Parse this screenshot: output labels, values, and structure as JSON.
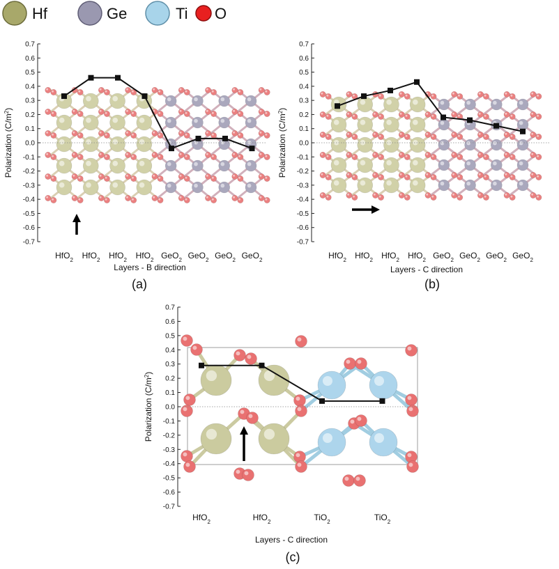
{
  "legend": {
    "items": [
      {
        "label": "Hf",
        "color": "#a8a86a",
        "stroke": "#6b6b3a"
      },
      {
        "label": "Ge",
        "color": "#9a98b0",
        "stroke": "#5f5d75"
      },
      {
        "label": "Ti",
        "color": "#a8d4ea",
        "stroke": "#5f8fa8"
      },
      {
        "label": "O",
        "color": "#e82020",
        "stroke": "#8a0e0e"
      }
    ]
  },
  "colors": {
    "hf": "#c9c99a",
    "ge": "#9c9ab2",
    "ti": "#a9d3ec",
    "o": "#e86a6a",
    "line": "#111111"
  },
  "chart_data": [
    {
      "id": "a",
      "type": "line",
      "panel_label": "(a)",
      "ylabel": "Polarization (C/m",
      "ylabel_sup": "2",
      "ylabel_close": ")",
      "xlabel": "Layers - B direction",
      "ylim": [
        -0.7,
        0.7
      ],
      "yticks": [
        "0.7",
        "0.6",
        "0.5",
        "0.4",
        "0.3",
        "0.2",
        "0.1",
        "0.0",
        "-0.1",
        "-0.2",
        "-0.3",
        "-0.4",
        "-0.5",
        "-0.6",
        "-0.7"
      ],
      "categories": [
        {
          "base": "HfO",
          "sub": "2"
        },
        {
          "base": "HfO",
          "sub": "2"
        },
        {
          "base": "HfO",
          "sub": "2"
        },
        {
          "base": "HfO",
          "sub": "2"
        },
        {
          "base": "GeO",
          "sub": "2"
        },
        {
          "base": "GeO",
          "sub": "2"
        },
        {
          "base": "GeO",
          "sub": "2"
        },
        {
          "base": "GeO",
          "sub": "2"
        }
      ],
      "values": [
        0.33,
        0.46,
        0.46,
        0.33,
        -0.04,
        0.03,
        0.03,
        -0.04
      ],
      "arrow": "up"
    },
    {
      "id": "b",
      "type": "line",
      "panel_label": "(b)",
      "ylabel": "Polarization (C/m",
      "ylabel_sup": "2",
      "ylabel_close": ")",
      "xlabel": "Layers - C direction",
      "ylim": [
        -0.7,
        0.7
      ],
      "yticks": [
        "0.7",
        "0.6",
        "0.5",
        "0.4",
        "0.3",
        "0.2",
        "0.1",
        "0.0",
        "-0.1",
        "-0.2",
        "-0.3",
        "-0.4",
        "-0.5",
        "-0.6",
        "-0.7"
      ],
      "categories": [
        {
          "base": "HfO",
          "sub": "2"
        },
        {
          "base": "HfO",
          "sub": "2"
        },
        {
          "base": "HfO",
          "sub": "2"
        },
        {
          "base": "HfO",
          "sub": "2"
        },
        {
          "base": "GeO",
          "sub": "2"
        },
        {
          "base": "GeO",
          "sub": "2"
        },
        {
          "base": "GeO",
          "sub": "2"
        },
        {
          "base": "GeO",
          "sub": "2"
        }
      ],
      "values": [
        0.26,
        0.33,
        0.37,
        0.43,
        0.18,
        0.16,
        0.12,
        0.08
      ],
      "arrow": "right"
    },
    {
      "id": "c",
      "type": "line",
      "panel_label": "(c)",
      "ylabel": "Polarization (C/m",
      "ylabel_sup": "2",
      "ylabel_close": ")",
      "xlabel": "Layers - C direction",
      "ylim": [
        -0.7,
        0.7
      ],
      "yticks": [
        "0.7",
        "0.6",
        "0.5",
        "0.4",
        "0.3",
        "0.2",
        "0.1",
        "0.0",
        "-0.1",
        "-0.2",
        "-0.3",
        "-0.4",
        "-0.5",
        "-0.6",
        "-0.7"
      ],
      "categories": [
        {
          "base": "HfO",
          "sub": "2"
        },
        {
          "base": "HfO",
          "sub": "2"
        },
        {
          "base": "TiO",
          "sub": "2"
        },
        {
          "base": "TiO",
          "sub": "2"
        }
      ],
      "values": [
        0.29,
        0.29,
        0.04,
        0.04
      ],
      "arrow": "up"
    }
  ]
}
